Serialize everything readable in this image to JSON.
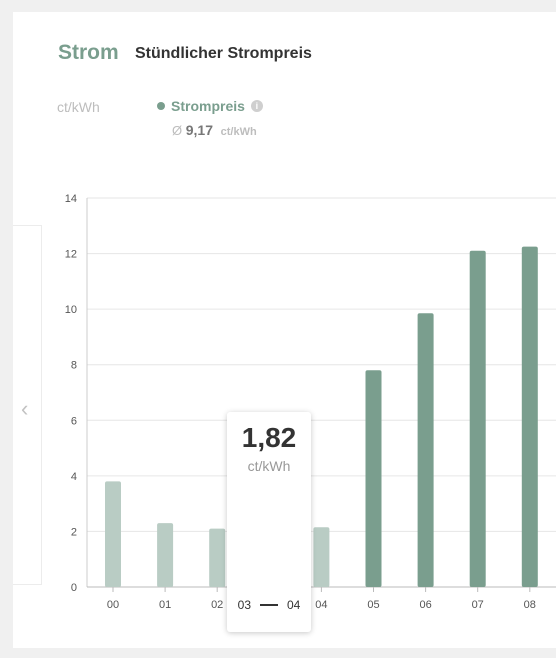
{
  "header": {
    "title": "Strom",
    "subtitle": "Stündlicher Strompreis"
  },
  "unit_label": "ct/kWh",
  "legend": {
    "series_name": "Strompreis",
    "info_icon": "info-icon",
    "avg_prefix": "Ø",
    "avg_value": "9,17",
    "avg_unit": "ct/kWh"
  },
  "nav": {
    "prev_icon": "chevron-left-icon",
    "prev_glyph": "‹"
  },
  "tooltip": {
    "value": "1,82",
    "unit": "ct/kWh",
    "range_start": "03",
    "range_end": "04"
  },
  "colors": {
    "accent": "#7a9e8e",
    "bar_past": "#b9ccc4",
    "bar_future": "#7a9e8e",
    "grid": "#e6e6e6"
  },
  "chart_data": {
    "type": "bar",
    "categories": [
      "00",
      "01",
      "02",
      "03",
      "04",
      "05",
      "06",
      "07",
      "08"
    ],
    "series": [
      {
        "name": "Strompreis",
        "values": [
          3.8,
          2.3,
          2.1,
          1.82,
          2.15,
          7.8,
          9.85,
          12.1,
          12.25
        ]
      }
    ],
    "past_count": 5,
    "ylim": [
      0,
      14
    ],
    "yticks": [
      0,
      2,
      4,
      6,
      8,
      10,
      12,
      14
    ],
    "grid": true
  }
}
